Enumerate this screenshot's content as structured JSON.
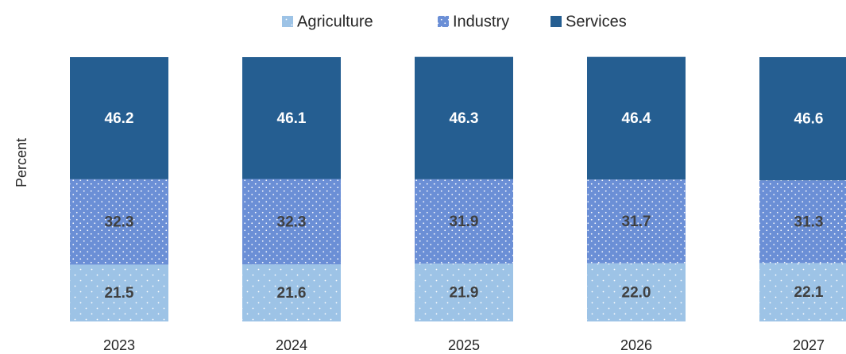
{
  "chart_data": {
    "type": "stacked-bar",
    "y_label": "Percent",
    "categories": [
      "2023",
      "2024",
      "2025",
      "2026",
      "2027"
    ],
    "ylim": [
      0,
      100
    ],
    "legend": "top",
    "series": [
      {
        "name": "Agriculture",
        "color": "#9dc3e6",
        "label_color": "#404040",
        "values": [
          21.5,
          21.6,
          21.9,
          22.0,
          22.1
        ],
        "value_labels": [
          "21.5",
          "21.6",
          "21.9",
          "22.0",
          "22.1"
        ]
      },
      {
        "name": "Industry",
        "color": "#6b8fd6",
        "label_color": "#404040",
        "values": [
          32.3,
          32.3,
          31.9,
          31.7,
          31.3
        ],
        "value_labels": [
          "32.3",
          "32.3",
          "31.9",
          "31.7",
          "31.3"
        ]
      },
      {
        "name": "Services",
        "color": "#255e91",
        "label_color": "#ffffff",
        "values": [
          46.2,
          46.1,
          46.3,
          46.4,
          46.6
        ],
        "value_labels": [
          "46.2",
          "46.1",
          "46.3",
          "46.4",
          "46.6"
        ]
      }
    ]
  }
}
